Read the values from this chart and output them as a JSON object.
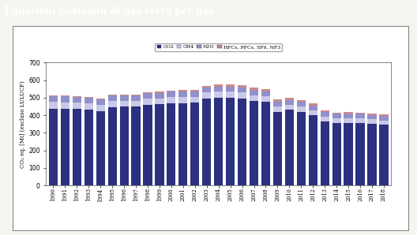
{
  "title": "Emissioni nazionali di gas serra per gas",
  "years": [
    1990,
    1991,
    1992,
    1993,
    1994,
    1995,
    1996,
    1997,
    1998,
    1999,
    2000,
    2001,
    2002,
    2003,
    2004,
    2005,
    2006,
    2007,
    2008,
    2009,
    2010,
    2011,
    2012,
    2013,
    2014,
    2015,
    2016,
    2017,
    2018
  ],
  "CO2": [
    437,
    436,
    436,
    430,
    422,
    445,
    448,
    448,
    460,
    462,
    468,
    470,
    472,
    495,
    500,
    500,
    495,
    482,
    475,
    420,
    430,
    418,
    400,
    365,
    355,
    357,
    355,
    350,
    345
  ],
  "CH4": [
    38,
    38,
    37,
    38,
    37,
    36,
    35,
    35,
    35,
    35,
    35,
    35,
    34,
    34,
    34,
    34,
    34,
    33,
    32,
    31,
    30,
    30,
    29,
    28,
    27,
    27,
    27,
    26,
    26
  ],
  "N2O": [
    35,
    34,
    33,
    33,
    33,
    32,
    31,
    31,
    31,
    31,
    31,
    31,
    30,
    30,
    30,
    30,
    30,
    30,
    29,
    28,
    27,
    27,
    27,
    26,
    26,
    26,
    26,
    26,
    26
  ],
  "HFCs": [
    4,
    4,
    4,
    4,
    4,
    4,
    4,
    4,
    5,
    6,
    7,
    8,
    9,
    10,
    12,
    14,
    14,
    13,
    13,
    12,
    11,
    11,
    10,
    8,
    7,
    7,
    8,
    7,
    7
  ],
  "colors": {
    "CO2": "#2B3080",
    "CH4": "#C8C8E8",
    "N2O": "#9090CC",
    "HFCs": "#CC8888"
  },
  "ylabel": "CO₂ eq. [Mt] (escluso LULUCF)",
  "ylim": [
    0,
    700
  ],
  "yticks": [
    0,
    100,
    200,
    300,
    400,
    500,
    600,
    700
  ],
  "legend_labels": [
    "CO2",
    "CH4",
    "N2O",
    "HFCs, PFCs, SF6, NF3"
  ],
  "page_bg_color": "#F5F5F0",
  "chart_bg_color": "#FFFFFF",
  "title_bg_color": "#2D6E2D",
  "title_text_color": "#FFFFFF",
  "title_fontsize": 8.5,
  "bar_width": 0.75
}
